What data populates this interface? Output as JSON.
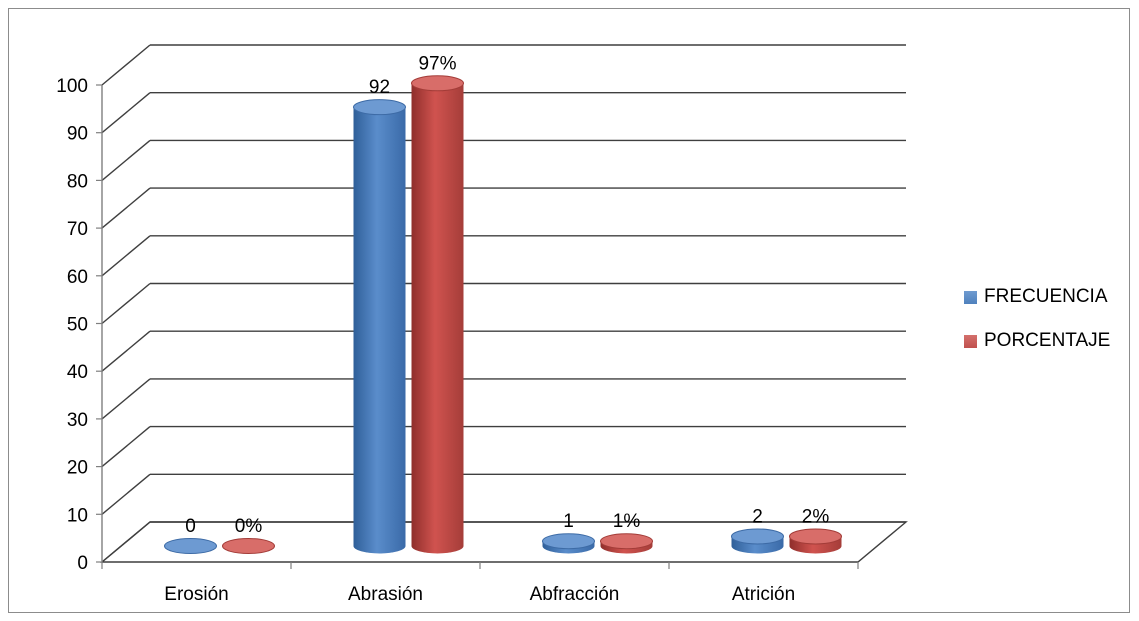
{
  "chart_data": {
    "type": "bar",
    "categories": [
      "Erosión",
      "Abrasión",
      "Abfracción",
      "Atrición"
    ],
    "series": [
      {
        "name": "FRECUENCIA",
        "values": [
          0,
          92,
          1,
          2
        ],
        "labels": [
          "0",
          "92",
          "1",
          "2"
        ],
        "color": "#4f81bd"
      },
      {
        "name": "PORCENTAJE",
        "values": [
          0,
          97,
          1,
          2
        ],
        "labels": [
          "0%",
          "97%",
          "1%",
          "2%"
        ],
        "color": "#c0504d"
      }
    ],
    "y_ticks": [
      "0",
      "10",
      "20",
      "30",
      "40",
      "50",
      "60",
      "70",
      "80",
      "90",
      "100"
    ],
    "ylim": [
      0,
      100
    ],
    "grid": true,
    "legend_position": "right",
    "style": "3d-cylinder"
  }
}
